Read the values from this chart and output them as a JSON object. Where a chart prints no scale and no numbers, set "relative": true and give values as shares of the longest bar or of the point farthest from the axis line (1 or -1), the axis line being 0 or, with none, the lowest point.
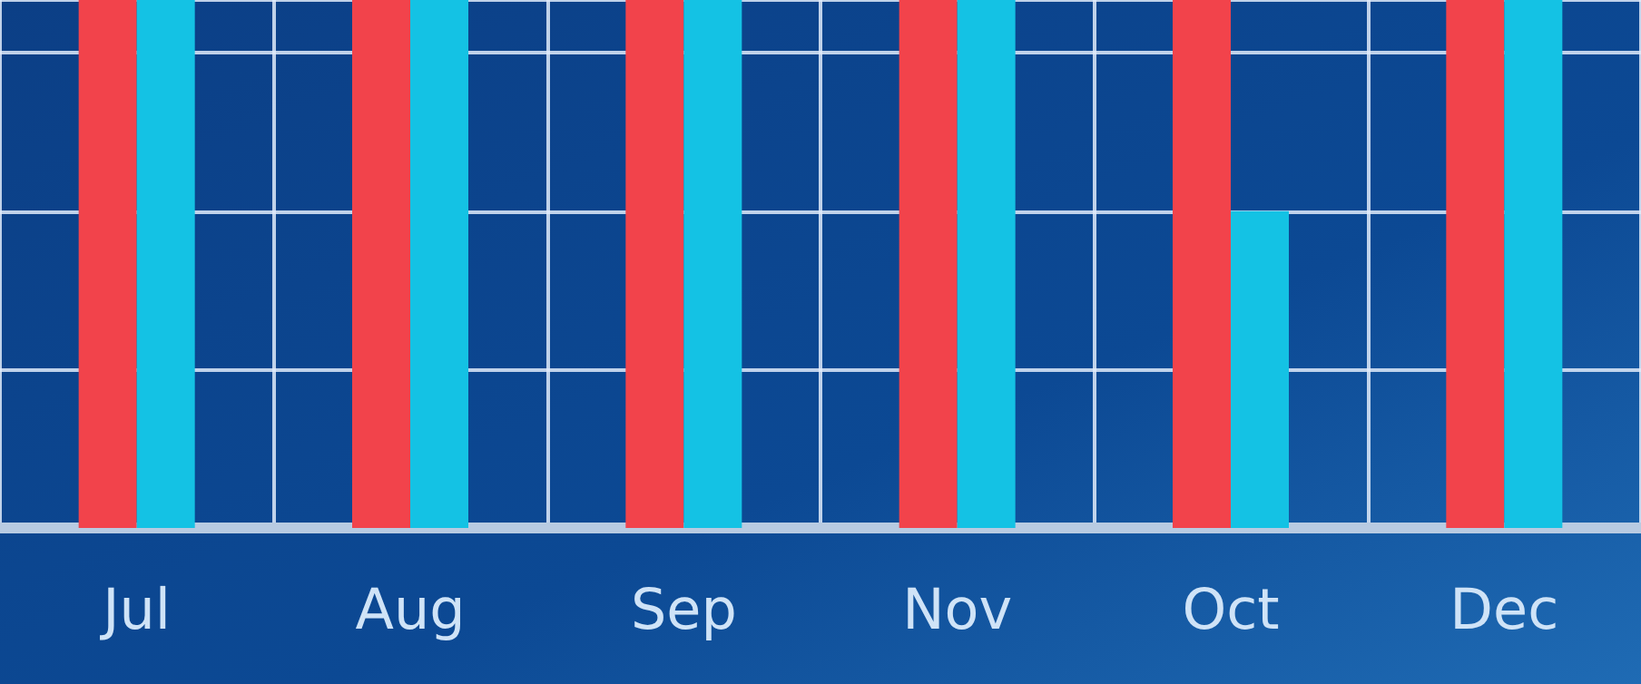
{
  "chart_data": {
    "type": "bar",
    "relative": true,
    "categories": [
      "Jul",
      "Aug",
      "Sep",
      "Nov",
      "Oct",
      "Dec"
    ],
    "series": [
      {
        "color": "#f2434b",
        "values": [
          1,
          1,
          1,
          1,
          1,
          1
        ]
      },
      {
        "color": "#14c2e4",
        "values": [
          1,
          1,
          1,
          1,
          0.6,
          1
        ]
      }
    ],
    "grid": true
  }
}
